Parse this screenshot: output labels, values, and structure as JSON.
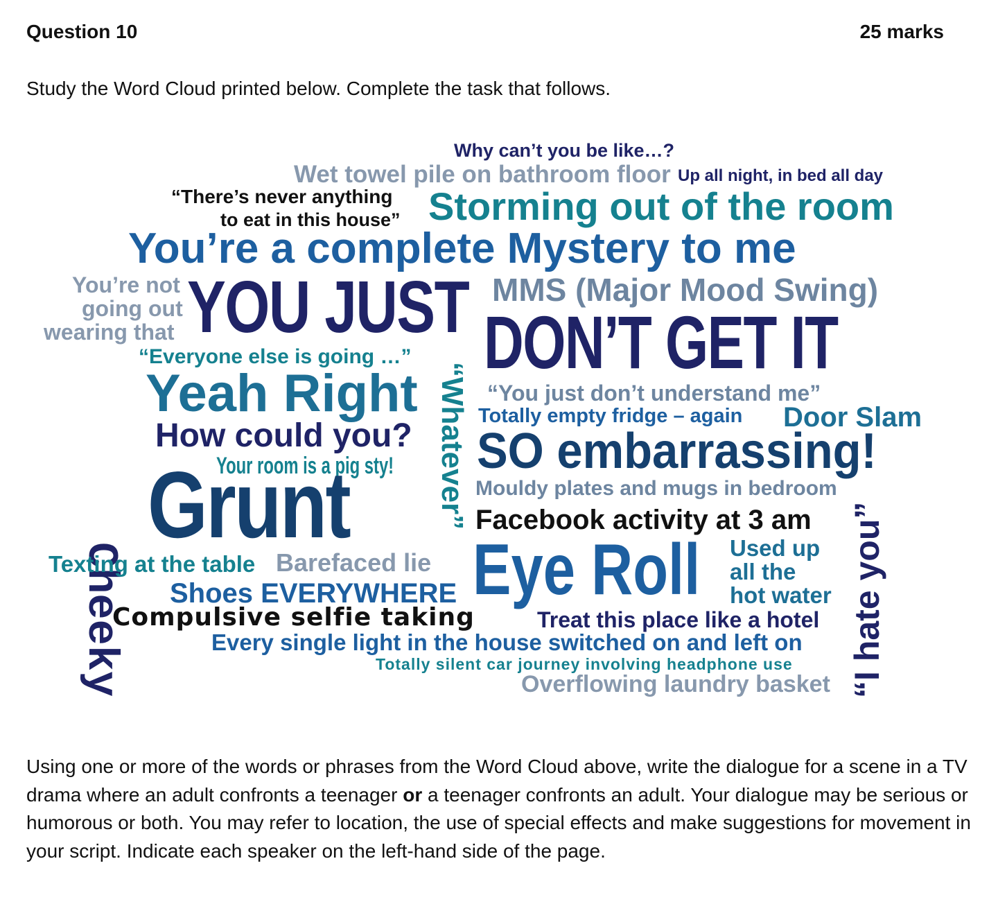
{
  "header": {
    "question": "Question 10",
    "marks": "25 marks"
  },
  "intro": "Study the Word Cloud printed below.  Complete the task that follows.",
  "colors": {
    "navy": "#1f2366",
    "darkblue": "#15406e",
    "blue": "#1d5fa0",
    "teal": "#15818f",
    "grey": "#6d85a0",
    "lightgrey": "#8798ad",
    "black": "#111111"
  },
  "word_cloud": {
    "why_cant": "Why can’t you be like…?",
    "wet_towel": "Wet towel pile on bathroom floor",
    "up_all_night": "Up all night, in bed all day",
    "never_anything_1": "“There’s never anything",
    "never_anything_2": "to eat in this house”",
    "storming": "Storming out of the room",
    "mystery": "You’re a complete Mystery to me",
    "not_going_1": "You’re not",
    "not_going_2": "going out",
    "not_going_3": "wearing that",
    "you_just": "YOU JUST",
    "mms": "MMS (Major Mood Swing)",
    "dont_get_it": "DON’T GET IT",
    "everyone": "“Everyone else is going …”",
    "cheeky": "Cheeky",
    "yeah_right": "Yeah Right",
    "whatever": "“Whatever”",
    "understand": "“You just don’t understand me”",
    "fridge": "Totally empty fridge – again",
    "door_slam": "Door Slam",
    "how_could": "How could you?",
    "so_embarrassing": "SO embarrassing!",
    "pig_sty": "Your room is a pig sty!",
    "grunt": "Grunt",
    "mouldy": "Mouldy plates and mugs in bedroom",
    "i_hate_you": "“I hate you”",
    "facebook": "Facebook activity at 3 am",
    "texting": "Texting at the table",
    "barefaced": "Barefaced lie",
    "eye_roll": "Eye Roll",
    "used_up_1": "Used up",
    "used_up_2": "all the",
    "used_up_3": "hot water",
    "shoes": "Shoes EVERYWHERE",
    "selfie": "Compulsive selfie taking",
    "hotel": "Treat this place like a hotel",
    "light": "Every single light in the house switched on and left on",
    "silent_car": "Totally silent car journey involving headphone use",
    "laundry": "Overflowing laundry basket"
  },
  "task": {
    "part1": "Using one or more of the words or phrases from the Word Cloud above, write the dialogue for a scene in a TV drama where an adult confronts a teenager ",
    "bold_or": "or",
    "part2": " a teenager confronts an adult.  Your dialogue may be serious or humorous or both.  You may refer to location, the use of special effects and make suggestions for movement in your script.  Indicate each speaker on the left-hand side of the page."
  }
}
